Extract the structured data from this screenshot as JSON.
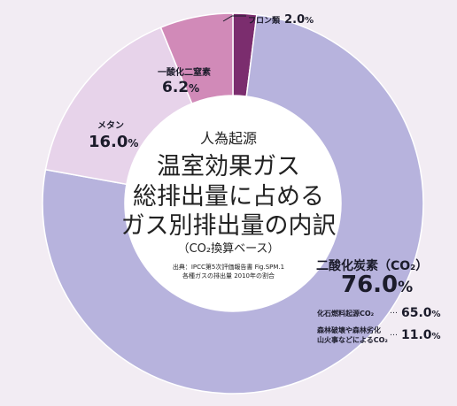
{
  "chart_data": {
    "type": "pie",
    "donut": true,
    "kicker": "人為起源",
    "title_lines": [
      "温室効果ガス",
      "総排出量に占める",
      "ガス別排出量の内訳"
    ],
    "subtitle": "（CO₂換算ベース）",
    "source_lines": [
      "出典：IPCC第5次評価報告書 Fig.SPM.1",
      "各種ガスの排出量 2010年の割合"
    ],
    "slices": [
      {
        "label": "フロン類",
        "value": 2.0,
        "value_text": "2.0",
        "unit": "%",
        "color": "#7b2d6e"
      },
      {
        "label": "二酸化炭素（CO₂）",
        "value": 76.0,
        "value_text": "76.0",
        "unit": "%",
        "color": "#b7b3dd"
      },
      {
        "label": "メタン",
        "value": 16.0,
        "value_text": "16.0",
        "unit": "%",
        "color": "#e7d3ea"
      },
      {
        "label": "一酸化二窒素",
        "value": 6.2,
        "value_text": "6.2",
        "unit": "%",
        "color": "#d18ab8"
      }
    ],
    "breakdown": [
      {
        "label_lines": [
          "化石燃料起源CO₂"
        ],
        "value_text": "65.0",
        "unit": "%"
      },
      {
        "label_lines": [
          "森林破壊や森林劣化",
          "山火事などによるCO₂"
        ],
        "value_text": "11.0",
        "unit": "%"
      }
    ]
  },
  "colors": {
    "background": "#f2ecf3",
    "center": "#ffffff",
    "label_text": "#1b1b2a"
  }
}
